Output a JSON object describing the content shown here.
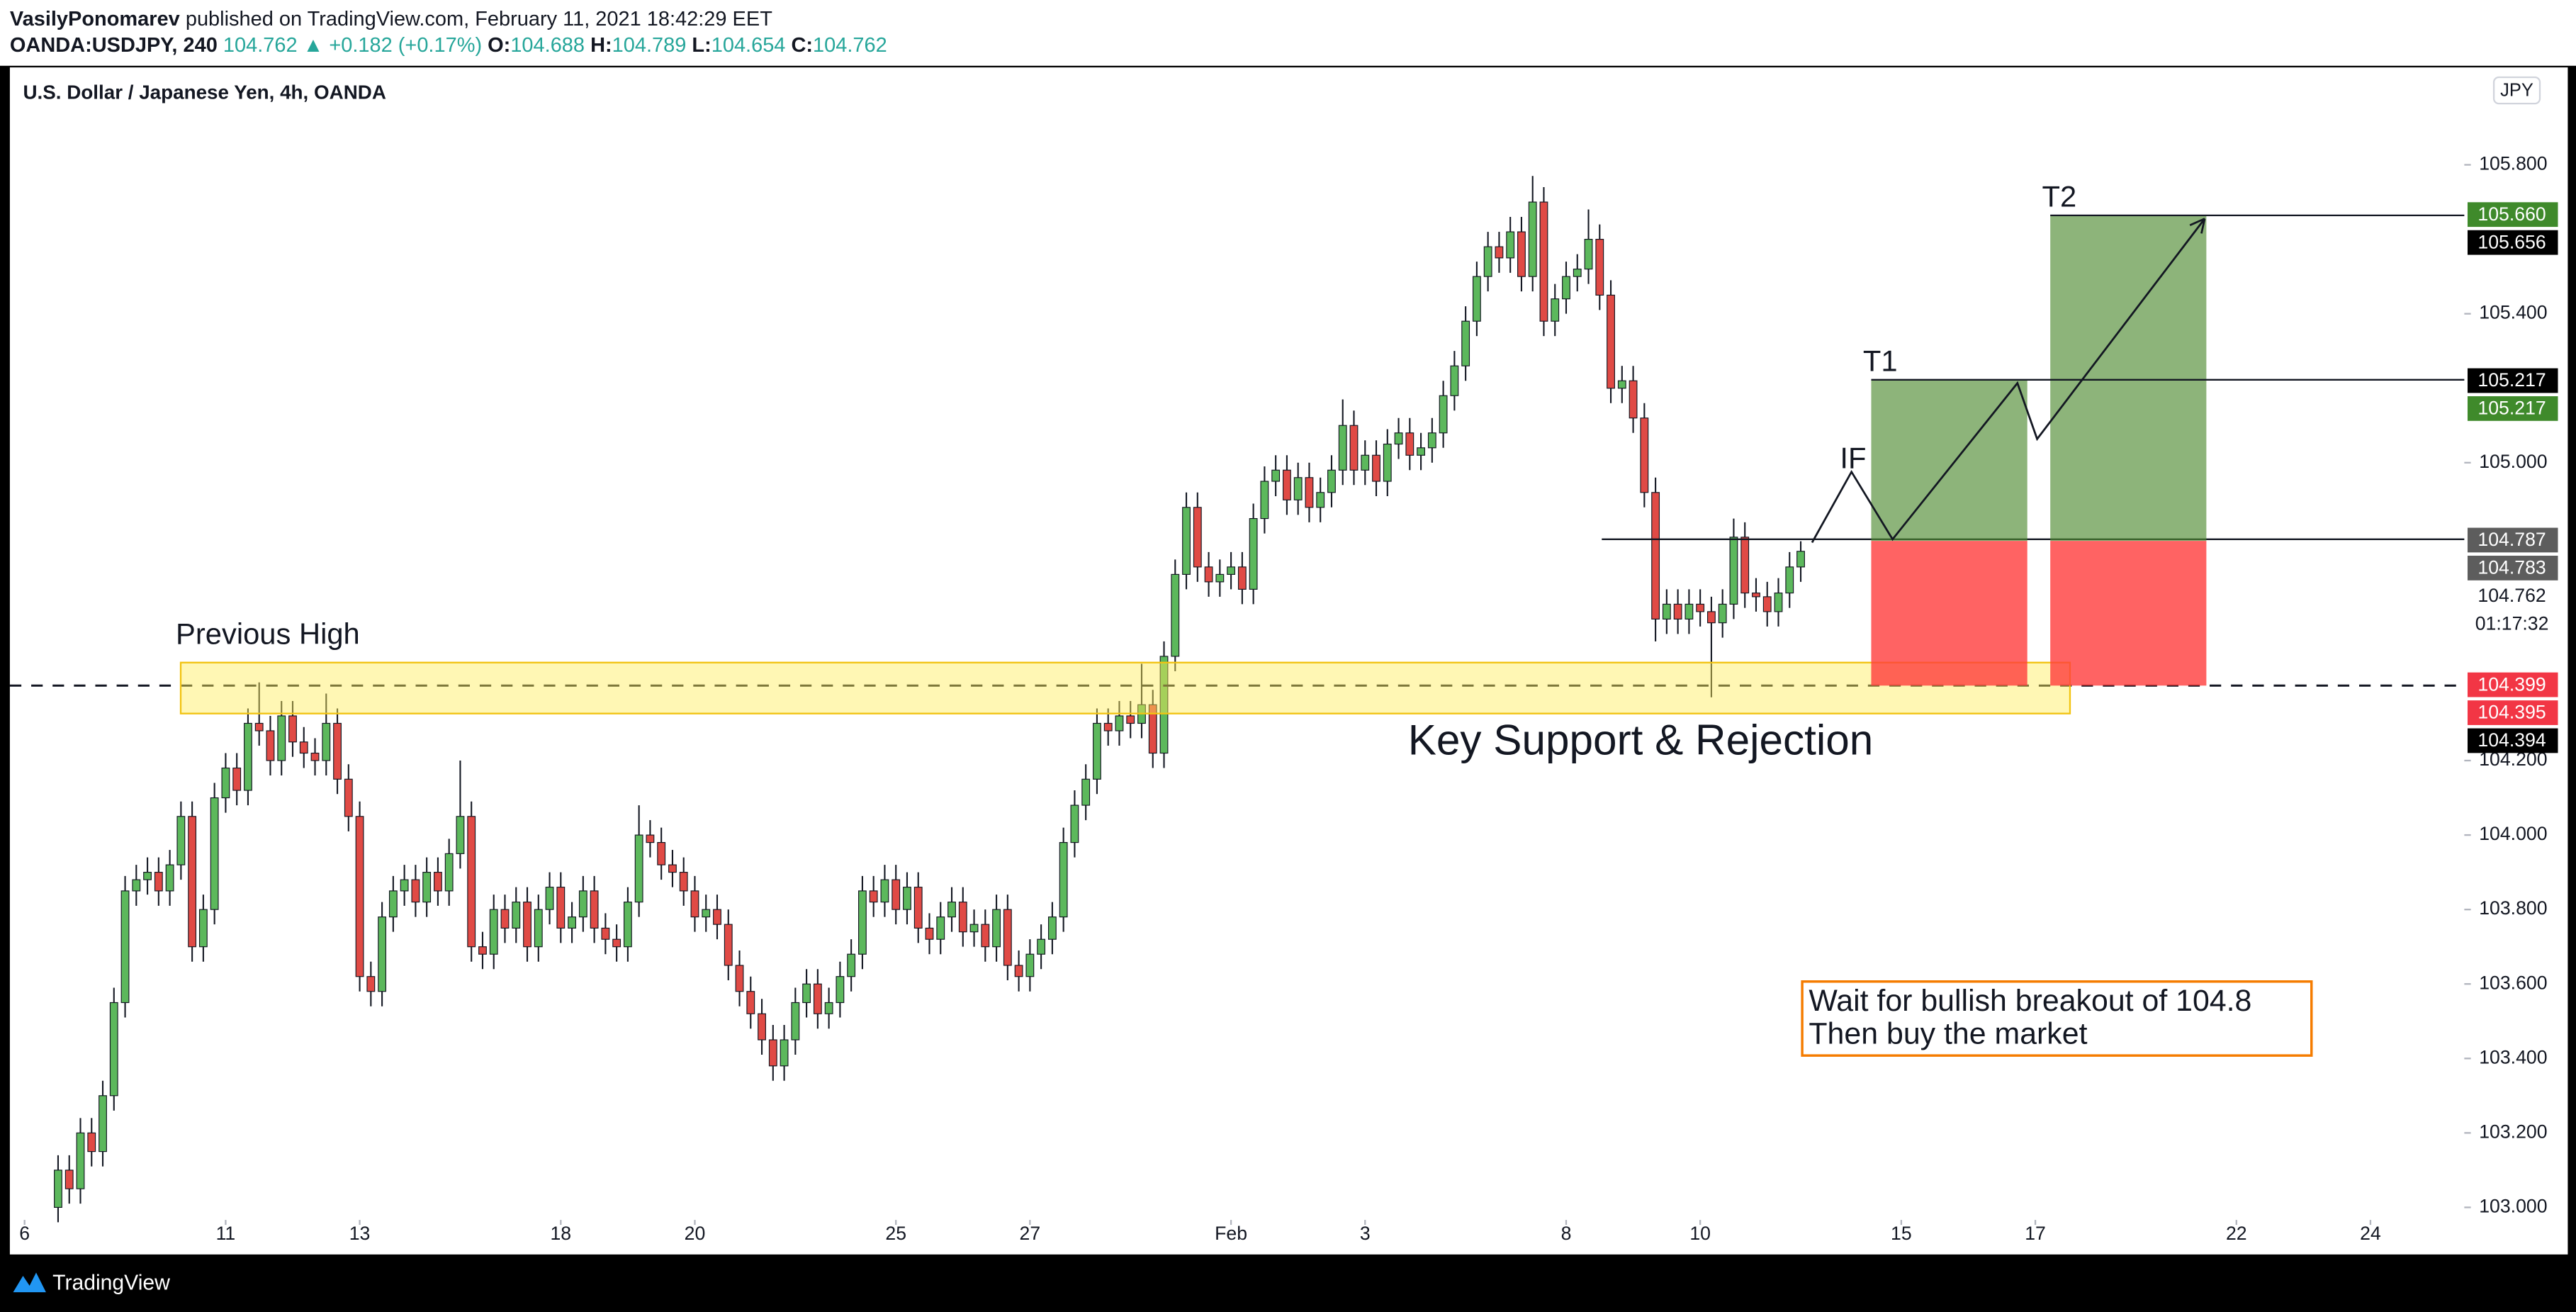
{
  "header": {
    "author": "VasilyPonomarev",
    "published": "published on TradingView.com, February 11, 2021 18:42:29 EET",
    "symbol": "OANDA:USDJPY, 240",
    "last": "104.762",
    "change": "▲ +0.182 (+0.17%)",
    "o_label": "O:",
    "open": "104.688",
    "h_label": "H:",
    "high": "104.789",
    "l_label": "L:",
    "low": "104.654",
    "c_label": "C:",
    "close": "104.762"
  },
  "chart_data": {
    "type": "candlestick",
    "title": "U.S. Dollar / Japanese Yen, 4h, OANDA",
    "currency": "JPY",
    "up_color": "#5cb85c",
    "down_color": "#e04a45",
    "grid": false,
    "xlim": [
      -2.2,
      218.4
    ],
    "ylim": [
      102.878,
      106.066
    ],
    "xticks": [
      {
        "value": 0,
        "label": "6"
      },
      {
        "value": 18,
        "label": "11"
      },
      {
        "value": 30,
        "label": "13"
      },
      {
        "value": 48,
        "label": "18"
      },
      {
        "value": 60,
        "label": "20"
      },
      {
        "value": 78,
        "label": "25"
      },
      {
        "value": 90,
        "label": "27"
      },
      {
        "value": 108,
        "label": "Feb"
      },
      {
        "value": 120,
        "label": "3"
      },
      {
        "value": 138,
        "label": "8"
      },
      {
        "value": 150,
        "label": "10"
      },
      {
        "value": 168,
        "label": "15"
      },
      {
        "value": 180,
        "label": "17"
      },
      {
        "value": 198,
        "label": "22"
      },
      {
        "value": 210,
        "label": "24"
      }
    ],
    "yticks": [
      {
        "value": 103.0,
        "label": "103.000"
      },
      {
        "value": 103.2,
        "label": "103.200"
      },
      {
        "value": 103.4,
        "label": "103.400"
      },
      {
        "value": 103.6,
        "label": "103.600"
      },
      {
        "value": 103.8,
        "label": "103.800"
      },
      {
        "value": 104.0,
        "label": "104.000"
      },
      {
        "value": 104.2,
        "label": "104.200"
      },
      {
        "value": 105.0,
        "label": "105.000"
      },
      {
        "value": 105.4,
        "label": "105.400"
      },
      {
        "value": 105.8,
        "label": "105.800"
      }
    ],
    "x": [
      3,
      4,
      5,
      6,
      7,
      8,
      9,
      10,
      11,
      12,
      13,
      14,
      15,
      16,
      17,
      18,
      19,
      20,
      21,
      22,
      23,
      24,
      25,
      26,
      27,
      28,
      29,
      30,
      31,
      32,
      33,
      34,
      35,
      36,
      37,
      38,
      39,
      40,
      41,
      42,
      43,
      44,
      45,
      46,
      47,
      48,
      49,
      50,
      51,
      52,
      53,
      54,
      55,
      56,
      57,
      58,
      59,
      60,
      61,
      62,
      63,
      64,
      65,
      66,
      67,
      68,
      69,
      70,
      71,
      72,
      73,
      74,
      75,
      76,
      77,
      78,
      79,
      80,
      81,
      82,
      83,
      84,
      85,
      86,
      87,
      88,
      89,
      90,
      91,
      92,
      93,
      94,
      95,
      96,
      97,
      98,
      99,
      100,
      101,
      102,
      103,
      104,
      105,
      106,
      107,
      108,
      109,
      110,
      111,
      112,
      113,
      114,
      115,
      116,
      117,
      118,
      119,
      120,
      121,
      122,
      123,
      124,
      125,
      126,
      127,
      128,
      129,
      130,
      131,
      132,
      133,
      134,
      135,
      136,
      137,
      138,
      139,
      140,
      141,
      142,
      143,
      144,
      145,
      146,
      147,
      148,
      149,
      150,
      151,
      152,
      153,
      154,
      155,
      156,
      157,
      158,
      159
    ],
    "open": [
      103.0,
      103.1,
      103.05,
      103.2,
      103.15,
      103.3,
      103.55,
      103.85,
      103.88,
      103.9,
      103.85,
      103.92,
      104.05,
      103.7,
      103.8,
      104.1,
      104.18,
      104.12,
      104.3,
      104.28,
      104.2,
      104.32,
      104.25,
      104.22,
      104.2,
      104.3,
      104.15,
      104.05,
      103.62,
      103.58,
      103.78,
      103.85,
      103.88,
      103.82,
      103.9,
      103.85,
      103.95,
      104.05,
      103.7,
      103.68,
      103.8,
      103.75,
      103.82,
      103.7,
      103.8,
      103.86,
      103.75,
      103.78,
      103.85,
      103.75,
      103.72,
      103.7,
      103.82,
      104.0,
      103.98,
      103.92,
      103.9,
      103.85,
      103.78,
      103.8,
      103.76,
      103.65,
      103.58,
      103.52,
      103.45,
      103.38,
      103.45,
      103.55,
      103.6,
      103.52,
      103.55,
      103.62,
      103.68,
      103.85,
      103.82,
      103.88,
      103.8,
      103.86,
      103.75,
      103.72,
      103.78,
      103.82,
      103.74,
      103.76,
      103.7,
      103.8,
      103.65,
      103.62,
      103.68,
      103.72,
      103.78,
      103.98,
      104.08,
      104.15,
      104.3,
      104.28,
      104.32,
      104.3,
      104.35,
      104.22,
      104.48,
      104.7,
      104.88,
      104.72,
      104.68,
      104.7,
      104.72,
      104.66,
      104.85,
      104.95,
      104.98,
      104.9,
      104.96,
      104.88,
      104.92,
      104.98,
      105.1,
      104.98,
      105.02,
      104.95,
      105.05,
      105.08,
      105.02,
      105.04,
      105.08,
      105.18,
      105.26,
      105.38,
      105.5,
      105.58,
      105.55,
      105.62,
      105.5,
      105.7,
      105.38,
      105.44,
      105.5,
      105.52,
      105.6,
      105.45,
      105.2,
      105.22,
      105.12,
      104.92,
      104.58,
      104.62,
      104.58,
      104.62,
      104.6,
      104.57,
      104.62,
      104.8,
      104.65,
      104.64,
      104.6,
      104.65,
      104.72
    ],
    "high": [
      103.14,
      103.14,
      103.24,
      103.24,
      103.34,
      103.59,
      103.89,
      103.92,
      103.94,
      103.94,
      103.96,
      104.09,
      104.09,
      103.84,
      104.14,
      104.22,
      104.22,
      104.34,
      104.41,
      104.32,
      104.36,
      104.36,
      104.29,
      104.26,
      104.38,
      104.34,
      104.19,
      104.09,
      103.66,
      103.82,
      103.89,
      103.92,
      103.92,
      103.94,
      103.94,
      103.99,
      104.2,
      104.09,
      103.74,
      103.84,
      103.84,
      103.86,
      103.86,
      103.84,
      103.9,
      103.9,
      103.82,
      103.89,
      103.89,
      103.79,
      103.76,
      103.86,
      104.08,
      104.04,
      104.02,
      103.96,
      103.94,
      103.89,
      103.84,
      103.84,
      103.8,
      103.69,
      103.62,
      103.56,
      103.49,
      103.49,
      103.59,
      103.64,
      103.64,
      103.59,
      103.66,
      103.72,
      103.89,
      103.89,
      103.92,
      103.92,
      103.9,
      103.9,
      103.79,
      103.82,
      103.86,
      103.86,
      103.8,
      103.8,
      103.84,
      103.84,
      103.69,
      103.72,
      103.76,
      103.82,
      104.02,
      104.12,
      104.19,
      104.34,
      104.34,
      104.36,
      104.36,
      104.46,
      104.39,
      104.52,
      104.74,
      104.92,
      104.92,
      104.76,
      104.74,
      104.76,
      104.76,
      104.89,
      104.99,
      105.02,
      105.02,
      105.0,
      105.0,
      104.96,
      105.02,
      105.17,
      105.14,
      105.06,
      105.06,
      105.09,
      105.12,
      105.12,
      105.08,
      105.12,
      105.22,
      105.3,
      105.42,
      105.54,
      105.62,
      105.62,
      105.66,
      105.66,
      105.77,
      105.74,
      105.48,
      105.54,
      105.56,
      105.68,
      105.64,
      105.49,
      105.26,
      105.26,
      105.16,
      104.96,
      104.66,
      104.66,
      104.66,
      104.66,
      104.64,
      104.66,
      104.85,
      104.84,
      104.69,
      104.68,
      104.69,
      104.76,
      104.789
    ],
    "low": [
      102.96,
      103.01,
      103.01,
      103.11,
      103.11,
      103.26,
      103.51,
      103.81,
      103.84,
      103.81,
      103.81,
      103.88,
      103.66,
      103.66,
      103.76,
      104.06,
      104.08,
      104.08,
      104.24,
      104.16,
      104.16,
      104.21,
      104.18,
      104.16,
      104.16,
      104.11,
      104.01,
      103.58,
      103.54,
      103.54,
      103.74,
      103.81,
      103.78,
      103.78,
      103.81,
      103.81,
      103.91,
      103.66,
      103.64,
      103.64,
      103.71,
      103.71,
      103.66,
      103.66,
      103.76,
      103.71,
      103.71,
      103.74,
      103.71,
      103.68,
      103.66,
      103.66,
      103.78,
      103.94,
      103.88,
      103.86,
      103.81,
      103.74,
      103.74,
      103.72,
      103.61,
      103.54,
      103.48,
      103.41,
      103.34,
      103.34,
      103.41,
      103.51,
      103.48,
      103.48,
      103.51,
      103.58,
      103.64,
      103.78,
      103.78,
      103.76,
      103.76,
      103.71,
      103.68,
      103.68,
      103.74,
      103.7,
      103.7,
      103.66,
      103.66,
      103.61,
      103.58,
      103.58,
      103.64,
      103.68,
      103.74,
      103.94,
      104.04,
      104.11,
      104.24,
      104.24,
      104.26,
      104.26,
      104.18,
      104.18,
      104.44,
      104.66,
      104.68,
      104.64,
      104.64,
      104.66,
      104.62,
      104.62,
      104.81,
      104.91,
      104.86,
      104.86,
      104.84,
      104.84,
      104.88,
      104.94,
      104.94,
      104.94,
      104.91,
      104.91,
      105.01,
      104.98,
      104.98,
      105.0,
      105.04,
      105.14,
      105.22,
      105.34,
      105.46,
      105.51,
      105.51,
      105.46,
      105.46,
      105.34,
      105.34,
      105.4,
      105.46,
      105.48,
      105.41,
      105.16,
      105.16,
      105.08,
      104.88,
      104.52,
      104.54,
      104.54,
      104.54,
      104.56,
      104.37,
      104.53,
      104.58,
      104.61,
      104.6,
      104.56,
      104.56,
      104.61,
      104.68
    ],
    "close": [
      103.1,
      103.05,
      103.2,
      103.15,
      103.3,
      103.55,
      103.85,
      103.88,
      103.9,
      103.85,
      103.92,
      104.05,
      103.7,
      103.8,
      104.1,
      104.18,
      104.12,
      104.3,
      104.28,
      104.2,
      104.32,
      104.25,
      104.22,
      104.2,
      104.3,
      104.15,
      104.05,
      103.62,
      103.58,
      103.78,
      103.85,
      103.88,
      103.82,
      103.9,
      103.85,
      103.95,
      104.05,
      103.7,
      103.68,
      103.8,
      103.75,
      103.82,
      103.7,
      103.8,
      103.86,
      103.75,
      103.78,
      103.85,
      103.75,
      103.72,
      103.7,
      103.82,
      104.0,
      103.98,
      103.92,
      103.9,
      103.85,
      103.78,
      103.8,
      103.76,
      103.65,
      103.58,
      103.52,
      103.45,
      103.38,
      103.45,
      103.55,
      103.6,
      103.52,
      103.55,
      103.62,
      103.68,
      103.85,
      103.82,
      103.88,
      103.8,
      103.86,
      103.75,
      103.72,
      103.78,
      103.82,
      103.74,
      103.76,
      103.7,
      103.8,
      103.65,
      103.62,
      103.68,
      103.72,
      103.78,
      103.98,
      104.08,
      104.15,
      104.3,
      104.28,
      104.32,
      104.3,
      104.35,
      104.22,
      104.48,
      104.7,
      104.88,
      104.72,
      104.68,
      104.7,
      104.72,
      104.66,
      104.85,
      104.95,
      104.98,
      104.9,
      104.96,
      104.88,
      104.92,
      104.98,
      105.1,
      104.98,
      105.02,
      104.95,
      105.05,
      105.08,
      105.02,
      105.04,
      105.08,
      105.18,
      105.26,
      105.38,
      105.5,
      105.58,
      105.55,
      105.62,
      105.5,
      105.7,
      105.38,
      105.44,
      105.5,
      105.52,
      105.6,
      105.45,
      105.2,
      105.22,
      105.12,
      104.92,
      104.58,
      104.62,
      104.58,
      104.62,
      104.6,
      104.57,
      104.62,
      104.8,
      104.65,
      104.64,
      104.6,
      104.65,
      104.72,
      104.762
    ],
    "price_tags": [
      "105.660",
      "105.656",
      "105.217",
      "105.217",
      "104.787",
      "104.783",
      "104.762",
      "01:17:32",
      "104.399",
      "104.395",
      "104.394"
    ],
    "annotations": {
      "previous_high": "Previous High",
      "support": "Key Support & Rejection",
      "t1": "T1",
      "t2": "T2",
      "if": "IF",
      "note_line1": "Wait for bullish breakout of 104.8",
      "note_line2": "Then buy the market"
    }
  },
  "footer": {
    "brand": "TradingView"
  }
}
